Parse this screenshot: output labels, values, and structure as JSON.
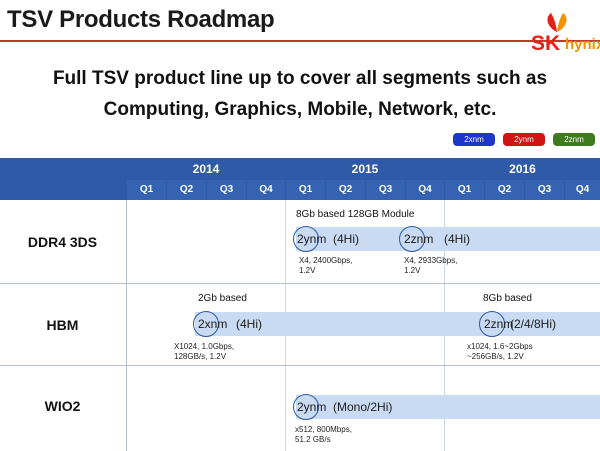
{
  "header": {
    "title": "TSV Products Roadmap"
  },
  "logo": {
    "brand": "SK",
    "name": "hynix"
  },
  "subtitle": {
    "line1": "Full TSV product line up to cover all segments such as",
    "line2": "Computing, Graphics, Mobile, Network, etc."
  },
  "legend": [
    {
      "label": "2xnm",
      "color": "#1d37c9"
    },
    {
      "label": "2ynm",
      "color": "#d01414"
    },
    {
      "label": "2znm",
      "color": "#3f7a1e"
    }
  ],
  "years": [
    "2014",
    "2015",
    "2016"
  ],
  "quarters": [
    "Q1",
    "Q2",
    "Q3",
    "Q4",
    "Q1",
    "Q2",
    "Q3",
    "Q4",
    "Q1",
    "Q2",
    "Q3",
    "Q4"
  ],
  "rows": {
    "ddr4": {
      "label": "DDR4 3DS",
      "caption": "8Gb based 128GB Module",
      "node1": {
        "tech": "2ynm",
        "stack": "(4Hi)",
        "spec1": "X4, 2400Gbps,",
        "spec2": "1.2V"
      },
      "node2": {
        "tech": "2znm",
        "stack": "(4Hi)",
        "spec1": "X4, 2933Gbps,",
        "spec2": "1.2V"
      }
    },
    "hbm": {
      "label": "HBM",
      "caption1": "2Gb based",
      "caption2": "8Gb based",
      "node1": {
        "tech": "2xnm",
        "stack": "(4Hi)",
        "spec1": "X1024, 1.0Gbps,",
        "spec2": "128GB/s, 1.2V"
      },
      "node2": {
        "tech": "2znm",
        "stack": "(2/4/8Hi)",
        "spec1": "x1024, 1.6~2Gbps",
        "spec2": "~256GB/s, 1.2V"
      }
    },
    "wio2": {
      "label": "WIO2",
      "node1": {
        "tech": "2ynm",
        "stack": "(Mono/2Hi)",
        "spec1": "x512, 800Mbps,",
        "spec2": "51.2 GB/s"
      }
    }
  }
}
